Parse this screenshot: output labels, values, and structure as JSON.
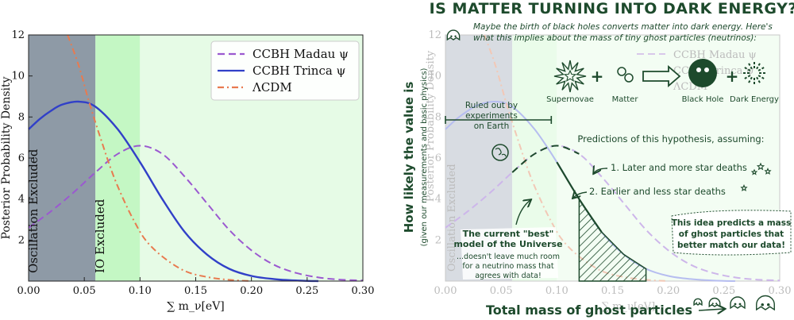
{
  "chart_data": [
    {
      "type": "line",
      "title": "",
      "xlabel": "∑ m_ν[eV]",
      "ylabel": "Posterior Probability Density",
      "xlim": [
        0.0,
        0.3
      ],
      "ylim": [
        0,
        12
      ],
      "x_ticks": [
        "0.00",
        "0.05",
        "0.10",
        "0.15",
        "0.20",
        "0.25",
        "0.30"
      ],
      "y_ticks": [
        "2",
        "4",
        "6",
        "8",
        "10",
        "12"
      ],
      "legend_position": "top-right",
      "regions": [
        {
          "label": "Oscillation Excluded",
          "x": [
            0.0,
            0.06
          ],
          "color": "#8e9aa6"
        },
        {
          "label": "IO Excluded",
          "x": [
            0.06,
            0.1
          ],
          "color": "#c4f7c4"
        },
        {
          "label": "",
          "x": [
            0.1,
            0.3
          ],
          "color": "#e6fbe6"
        }
      ],
      "series": [
        {
          "name": "CCBH Madau ψ",
          "color": "#9b59d0",
          "dash": "dashed",
          "x": [
            0.0,
            0.02,
            0.04,
            0.06,
            0.08,
            0.1,
            0.12,
            0.14,
            0.16,
            0.18,
            0.2,
            0.22,
            0.24,
            0.26,
            0.28,
            0.3
          ],
          "y": [
            2.6,
            3.4,
            4.3,
            5.3,
            6.2,
            6.6,
            6.2,
            5.1,
            3.8,
            2.5,
            1.5,
            0.8,
            0.4,
            0.18,
            0.07,
            0.03
          ]
        },
        {
          "name": "CCBH Trinca ψ",
          "color": "#3140c8",
          "dash": "solid",
          "x": [
            0.0,
            0.01,
            0.02,
            0.03,
            0.045,
            0.06,
            0.08,
            0.1,
            0.12,
            0.14,
            0.16,
            0.18,
            0.2,
            0.22,
            0.24,
            0.26
          ],
          "y": [
            7.4,
            7.9,
            8.3,
            8.6,
            8.75,
            8.5,
            7.4,
            5.8,
            4.0,
            2.4,
            1.3,
            0.6,
            0.25,
            0.1,
            0.03,
            0.0
          ]
        },
        {
          "name": "ΛCDM",
          "color": "#e87a4f",
          "dash": "dashdot",
          "x": [
            0.035,
            0.045,
            0.055,
            0.065,
            0.075,
            0.085,
            0.095,
            0.105,
            0.12,
            0.14,
            0.16,
            0.18,
            0.2
          ],
          "y": [
            12.0,
            10.5,
            8.6,
            6.9,
            5.3,
            4.0,
            2.9,
            2.0,
            1.2,
            0.5,
            0.2,
            0.06,
            0.0
          ]
        }
      ]
    },
    {
      "type": "line",
      "title": "IS MATTER TURNING INTO DARK ENERGY??",
      "xlabel": "Total mass of ghost particles",
      "ylabel": "How likely the value is",
      "ylabel_sub": "(given our measurements and basic physics)",
      "intro_lines": [
        "Maybe the birth of black holes converts matter into dark energy. Here's",
        "what this implies about the mass of tiny ghost particles (neutrinos):"
      ],
      "icons": [
        "Supernovae",
        "Matter",
        "Black Hole",
        "Dark Energy"
      ],
      "annotations": {
        "ruled_out": [
          "Ruled out by",
          "experiments",
          "on Earth"
        ],
        "predictions_title": "Predictions of this hypothesis, assuming:",
        "prediction_1": "1. Later and more star deaths",
        "prediction_2": "2. Earlier and less star deaths",
        "best_model": [
          "The current \"best\"",
          "model of the Universe"
        ],
        "best_model_note": [
          "...doesn't leave much room",
          "for a neutrino mass that",
          "agrees with data!"
        ],
        "predicts": [
          "This idea predicts a mass",
          "of ghost particles that",
          "better match our data!"
        ]
      },
      "faded_labels": {
        "legend": [
          "CCBH Madau ψ",
          "CCBH Trinca ψ",
          "ΛCDM"
        ],
        "ylabel": "Posterior Probability Density",
        "region": "Oscillation Excluded",
        "xlabel": "∑ m_ν[eV]",
        "x_ticks": [
          "0.00",
          "0.05",
          "0.10",
          "0.15",
          "0.20",
          "0.25",
          "0.30"
        ],
        "y_ticks": [
          "2",
          "4",
          "6",
          "8",
          "10",
          "12"
        ]
      }
    }
  ]
}
